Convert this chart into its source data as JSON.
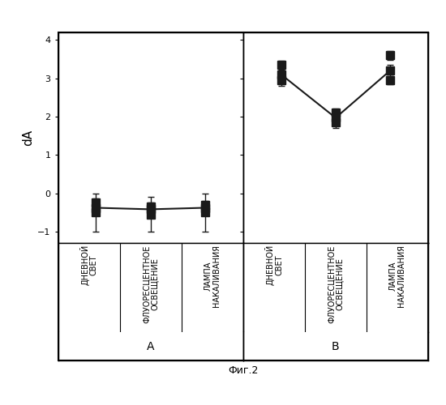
{
  "title_caption": "Фиг.2",
  "ylabel": "dA",
  "ylim": [
    -1.3,
    4.2
  ],
  "yticks": [
    -1,
    0,
    1,
    2,
    3,
    4
  ],
  "panel_A_label": "A",
  "panel_B_label": "B",
  "x_labels": [
    "ДНЕВНОЙ\nСВЕТ",
    "ФЛУОРЕСЦЕНТНОЕ\nОСВЕЩЕНИЕ",
    "ЛАМПА\nНАКАЛИВАНИЯ"
  ],
  "panel_A": {
    "series": [
      {
        "x_positions": [
          1,
          2,
          3
        ],
        "y_values": [
          -0.25,
          -0.35,
          -0.3
        ],
        "yerr": [
          0.12,
          0.1,
          0.1
        ]
      },
      {
        "x_positions": [
          1,
          2,
          3
        ],
        "y_values": [
          -0.5,
          -0.55,
          -0.5
        ],
        "yerr": [
          0.5,
          0.45,
          0.5
        ]
      },
      {
        "x_positions": [
          1,
          2,
          3
        ],
        "y_values": [
          -0.38,
          -0.42,
          -0.38
        ],
        "yerr": [
          0.08,
          0.08,
          0.08
        ]
      }
    ],
    "line_y": [
      -0.38,
      -0.42,
      -0.38
    ]
  },
  "panel_B": {
    "series": [
      {
        "x_positions": [
          1,
          2,
          3
        ],
        "y_values": [
          3.35,
          2.1,
          3.6
        ],
        "yerr": [
          0.12,
          0.12,
          0.12
        ]
      },
      {
        "x_positions": [
          1,
          2,
          3
        ],
        "y_values": [
          2.95,
          1.85,
          3.2
        ],
        "yerr": [
          0.15,
          0.15,
          0.15
        ]
      },
      {
        "x_positions": [
          1,
          2,
          3
        ],
        "y_values": [
          3.1,
          1.97,
          2.95
        ],
        "yerr": [
          0.1,
          0.1,
          0.1
        ]
      }
    ],
    "line_y": [
      3.1,
      1.97,
      3.2
    ]
  },
  "marker_color": "#1a1a1a",
  "line_color": "#1a1a1a",
  "marker_size": 7,
  "ecolor": "#1a1a1a",
  "capsize": 3,
  "bg_color": "#ffffff",
  "border_color": "#000000",
  "fontsize_labels": 7,
  "fontsize_ticks": 8,
  "fontsize_panel": 10,
  "fontsize_caption": 9,
  "fontsize_ylabel": 11
}
